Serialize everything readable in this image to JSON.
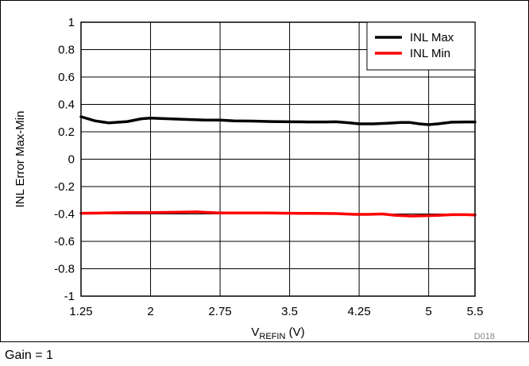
{
  "chart_data": {
    "type": "line",
    "title": "",
    "xlabel_main": "V",
    "xlabel_sub": "REFIN",
    "xlabel_unit": " (V)",
    "ylabel": "INL Error Max-Min",
    "xlim": [
      1.25,
      5.5
    ],
    "ylim": [
      -1,
      1
    ],
    "x_ticks": [
      1.25,
      2,
      2.75,
      3.5,
      4.25,
      5,
      5.5
    ],
    "x_tick_labels": [
      "1.25",
      "2",
      "2.75",
      "3.5",
      "4.25",
      "5",
      "5.5"
    ],
    "y_ticks": [
      -1,
      -0.8,
      -0.6,
      -0.4,
      -0.2,
      0,
      0.2,
      0.4,
      0.6,
      0.8,
      1
    ],
    "y_tick_labels": [
      "-1",
      "-0.8",
      "-0.6",
      "-0.4",
      "-0.2",
      "0",
      "0.2",
      "0.4",
      "0.6",
      "0.8",
      "1"
    ],
    "grid": true,
    "legend_position": "top-right",
    "series": [
      {
        "name": "INL Max",
        "color": "#000000",
        "x": [
          1.25,
          1.4,
          1.55,
          1.75,
          1.9,
          2.0,
          2.2,
          2.4,
          2.6,
          2.75,
          2.9,
          3.1,
          3.3,
          3.5,
          3.7,
          3.9,
          4.0,
          4.15,
          4.25,
          4.4,
          4.55,
          4.7,
          4.8,
          4.9,
          5.0,
          5.1,
          5.25,
          5.4,
          5.5
        ],
        "y": [
          0.31,
          0.28,
          0.265,
          0.275,
          0.295,
          0.3,
          0.295,
          0.29,
          0.285,
          0.285,
          0.28,
          0.278,
          0.275,
          0.273,
          0.272,
          0.272,
          0.273,
          0.265,
          0.258,
          0.258,
          0.262,
          0.268,
          0.268,
          0.258,
          0.252,
          0.258,
          0.27,
          0.272,
          0.272
        ]
      },
      {
        "name": "INL Min",
        "color": "#ff0000",
        "x": [
          1.25,
          1.5,
          1.75,
          2.0,
          2.25,
          2.5,
          2.75,
          3.0,
          3.25,
          3.5,
          3.75,
          4.0,
          4.2,
          4.35,
          4.5,
          4.65,
          4.8,
          4.95,
          5.1,
          5.25,
          5.4,
          5.5
        ],
        "y": [
          -0.395,
          -0.393,
          -0.39,
          -0.39,
          -0.388,
          -0.385,
          -0.393,
          -0.393,
          -0.393,
          -0.395,
          -0.396,
          -0.397,
          -0.403,
          -0.403,
          -0.4,
          -0.41,
          -0.415,
          -0.413,
          -0.41,
          -0.405,
          -0.405,
          -0.407
        ]
      }
    ],
    "annotations": {
      "figure_id": "D018",
      "footnote": "Gain = 1"
    }
  }
}
